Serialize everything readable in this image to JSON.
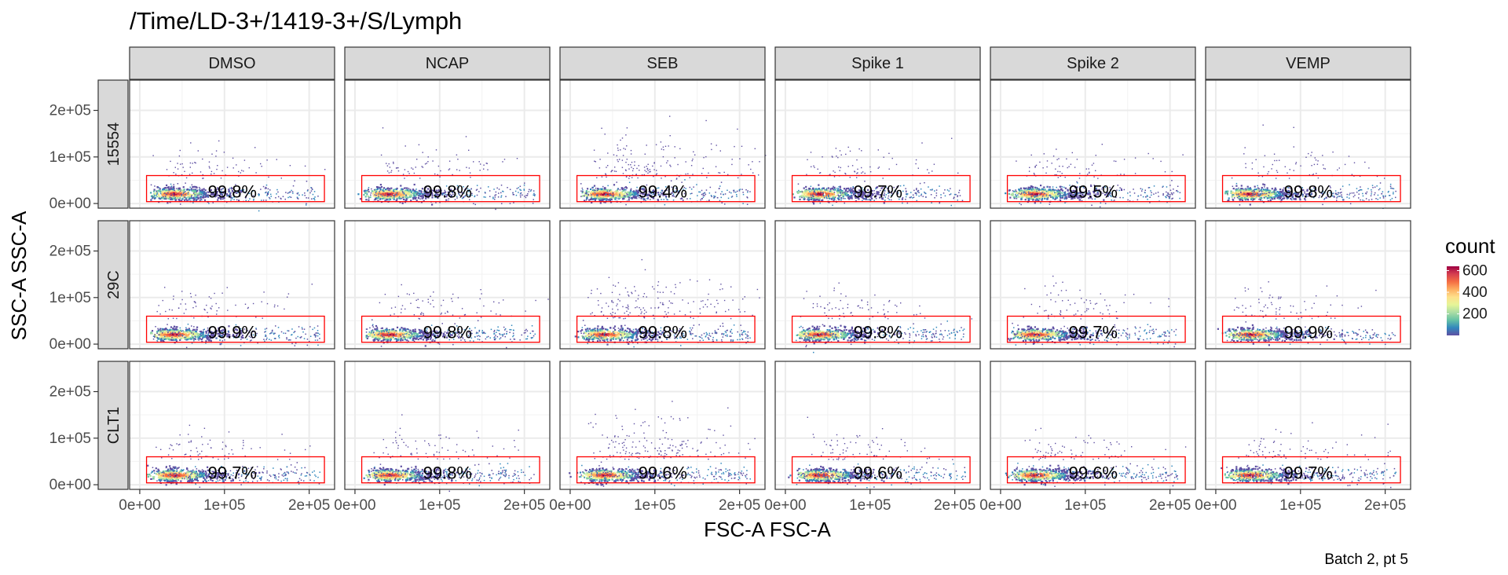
{
  "chart_data": {
    "type": "scatter",
    "title": "/Time/LD-3+/1419-3+/S/Lymph",
    "caption": "Batch 2, pt 5",
    "xlabel": "FSC-A FSC-A",
    "ylabel": "SSC-A SSC-A",
    "xlim": [
      -12000,
      230000
    ],
    "ylim": [
      -10000,
      265000
    ],
    "x_ticks": [
      {
        "value": 0,
        "label": "0e+00"
      },
      {
        "value": 100000,
        "label": "1e+05"
      },
      {
        "value": 200000,
        "label": "2e+05"
      }
    ],
    "y_ticks": [
      {
        "value": 0,
        "label": "0e+00"
      },
      {
        "value": 100000,
        "label": "1e+05"
      },
      {
        "value": 200000,
        "label": "2e+05"
      }
    ],
    "columns": [
      "DMSO",
      "NCAP",
      "SEB",
      "Spike 1",
      "Spike 2",
      "VEMP"
    ],
    "rows": [
      "15554",
      "29C",
      "CLT1"
    ],
    "gate": {
      "x_min": 8000,
      "x_max": 218000,
      "y_min": 4000,
      "y_max": 60000
    },
    "gate_color": "#ff0000",
    "panels": [
      {
        "row": "15554",
        "column": "DMSO",
        "pct_in_gate": "99.8%"
      },
      {
        "row": "15554",
        "column": "NCAP",
        "pct_in_gate": "99.8%"
      },
      {
        "row": "15554",
        "column": "SEB",
        "pct_in_gate": "99.4%"
      },
      {
        "row": "15554",
        "column": "Spike 1",
        "pct_in_gate": "99.7%"
      },
      {
        "row": "15554",
        "column": "Spike 2",
        "pct_in_gate": "99.5%"
      },
      {
        "row": "15554",
        "column": "VEMP",
        "pct_in_gate": "99.8%"
      },
      {
        "row": "29C",
        "column": "DMSO",
        "pct_in_gate": "99.9%"
      },
      {
        "row": "29C",
        "column": "NCAP",
        "pct_in_gate": "99.8%"
      },
      {
        "row": "29C",
        "column": "SEB",
        "pct_in_gate": "99.8%"
      },
      {
        "row": "29C",
        "column": "Spike 1",
        "pct_in_gate": "99.8%"
      },
      {
        "row": "29C",
        "column": "Spike 2",
        "pct_in_gate": "99.7%"
      },
      {
        "row": "29C",
        "column": "VEMP",
        "pct_in_gate": "99.9%"
      },
      {
        "row": "CLT1",
        "column": "DMSO",
        "pct_in_gate": "99.7%"
      },
      {
        "row": "CLT1",
        "column": "NCAP",
        "pct_in_gate": "99.8%"
      },
      {
        "row": "CLT1",
        "column": "SEB",
        "pct_in_gate": "99.6%"
      },
      {
        "row": "CLT1",
        "column": "Spike 1",
        "pct_in_gate": "99.6%"
      },
      {
        "row": "CLT1",
        "column": "Spike 2",
        "pct_in_gate": "99.6%"
      },
      {
        "row": "CLT1",
        "column": "VEMP",
        "pct_in_gate": "99.7%"
      }
    ],
    "legend": {
      "title": "count",
      "placement": "right",
      "ticks": [
        {
          "value": 200,
          "label": "200"
        },
        {
          "value": 400,
          "label": "400"
        },
        {
          "value": 600,
          "label": "600"
        }
      ],
      "range": [
        1,
        640
      ],
      "colors": [
        "#5e4fa2",
        "#3288bd",
        "#66c2a5",
        "#abdda4",
        "#e6f598",
        "#fee08b",
        "#fdae61",
        "#f46d43",
        "#d53e4f",
        "#9e0142"
      ]
    },
    "grid": true
  }
}
